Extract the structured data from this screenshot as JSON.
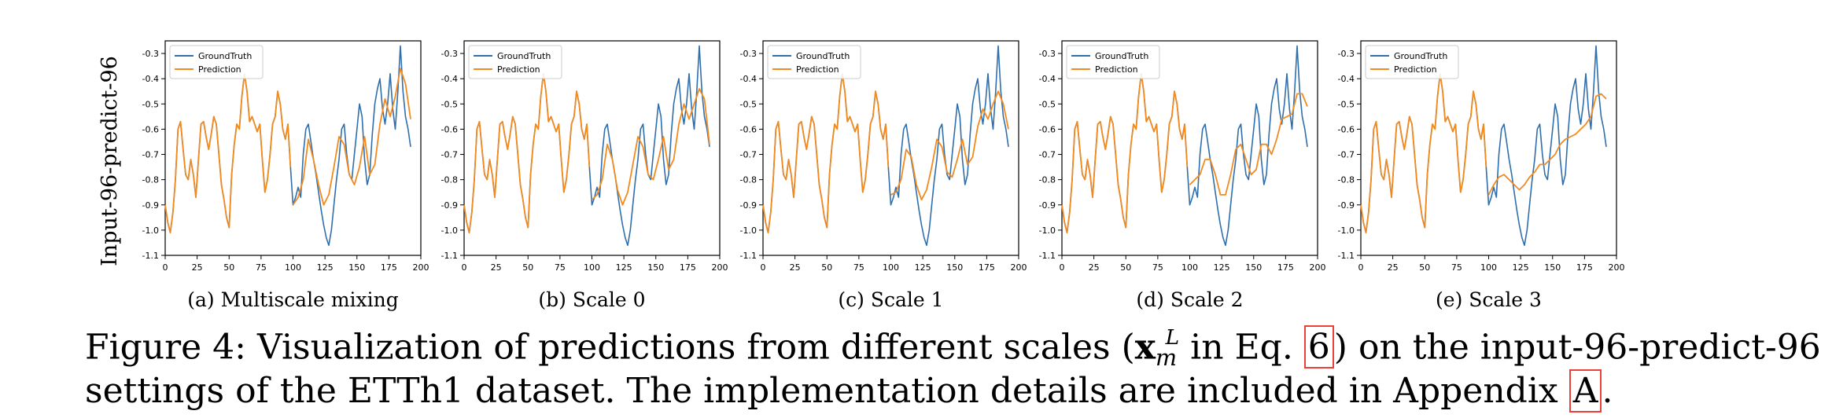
{
  "row_label": "Input-96-predict-96",
  "colors": {
    "ground_truth": "#2f6fad",
    "prediction": "#f28a1f",
    "ref_box": "#e8413a"
  },
  "caption": {
    "part1": "Figure 4: Visualization of predictions from different scales (",
    "symbol": "x",
    "symbol_sub": "m",
    "symbol_sup": "L",
    "part2": " in Eq. ",
    "eq_ref": "6",
    "part3": ") on the input-96-predict-96",
    "line2_text": "settings of the ETTh1 dataset. The implementation details are included in Appendix ",
    "appendix_ref": "A",
    "line2_end": "."
  },
  "chart_data": [
    {
      "type": "line",
      "id": "a",
      "subcaption": "(a) Multiscale mixing",
      "xlim": [
        0,
        200
      ],
      "ylim": [
        -1.1,
        -0.25
      ],
      "xticks": [
        0,
        25,
        50,
        75,
        100,
        125,
        150,
        175,
        200
      ],
      "yticks": [
        -0.3,
        -0.4,
        -0.5,
        -0.6,
        -0.7,
        -0.8,
        -0.9,
        -1.0,
        -1.1
      ],
      "legend": "top-left",
      "series": [
        {
          "name": "GroundTruth",
          "color": "#2f6fad"
        },
        {
          "name": "Prediction",
          "color": "#f28a1f"
        }
      ]
    },
    {
      "type": "line",
      "id": "b",
      "subcaption": "(b) Scale 0",
      "xlim": [
        0,
        200
      ],
      "ylim": [
        -1.1,
        -0.25
      ],
      "xticks": [
        0,
        25,
        50,
        75,
        100,
        125,
        150,
        175,
        200
      ],
      "yticks": [
        -0.3,
        -0.4,
        -0.5,
        -0.6,
        -0.7,
        -0.8,
        -0.9,
        -1.0,
        -1.1
      ],
      "legend": "top-left",
      "series": [
        {
          "name": "GroundTruth",
          "color": "#2f6fad"
        },
        {
          "name": "Prediction",
          "color": "#f28a1f"
        }
      ]
    },
    {
      "type": "line",
      "id": "c",
      "subcaption": "(c) Scale 1",
      "xlim": [
        0,
        200
      ],
      "ylim": [
        -1.1,
        -0.25
      ],
      "xticks": [
        0,
        25,
        50,
        75,
        100,
        125,
        150,
        175,
        200
      ],
      "yticks": [
        -0.3,
        -0.4,
        -0.5,
        -0.6,
        -0.7,
        -0.8,
        -0.9,
        -1.0,
        -1.1
      ],
      "legend": "top-left",
      "series": [
        {
          "name": "GroundTruth",
          "color": "#2f6fad"
        },
        {
          "name": "Prediction",
          "color": "#f28a1f"
        }
      ]
    },
    {
      "type": "line",
      "id": "d",
      "subcaption": "(d) Scale 2",
      "xlim": [
        0,
        200
      ],
      "ylim": [
        -1.1,
        -0.25
      ],
      "xticks": [
        0,
        25,
        50,
        75,
        100,
        125,
        150,
        175,
        200
      ],
      "yticks": [
        -0.3,
        -0.4,
        -0.5,
        -0.6,
        -0.7,
        -0.8,
        -0.9,
        -1.0,
        -1.1
      ],
      "legend": "top-left",
      "series": [
        {
          "name": "GroundTruth",
          "color": "#2f6fad"
        },
        {
          "name": "Prediction",
          "color": "#f28a1f"
        }
      ]
    },
    {
      "type": "line",
      "id": "e",
      "subcaption": "(e) Scale 3",
      "xlim": [
        0,
        200
      ],
      "ylim": [
        -1.1,
        -0.25
      ],
      "xticks": [
        0,
        25,
        50,
        75,
        100,
        125,
        150,
        175,
        200
      ],
      "yticks": [
        -0.3,
        -0.4,
        -0.5,
        -0.6,
        -0.7,
        -0.8,
        -0.9,
        -1.0,
        -1.1
      ],
      "legend": "top-left",
      "series": [
        {
          "name": "GroundTruth",
          "color": "#2f6fad"
        },
        {
          "name": "Prediction",
          "color": "#f28a1f"
        }
      ]
    }
  ],
  "series_data": {
    "x_gt": [
      0,
      2,
      4,
      6,
      8,
      10,
      12,
      14,
      16,
      18,
      20,
      22,
      24,
      26,
      28,
      30,
      32,
      34,
      36,
      38,
      40,
      42,
      44,
      46,
      48,
      50,
      52,
      54,
      56,
      58,
      60,
      62,
      64,
      66,
      68,
      70,
      72,
      74,
      76,
      78,
      80,
      82,
      84,
      86,
      88,
      90,
      92,
      94,
      96,
      98,
      100,
      102,
      104,
      106,
      108,
      110,
      112,
      114,
      116,
      118,
      120,
      122,
      124,
      126,
      128,
      130,
      132,
      134,
      136,
      138,
      140,
      142,
      144,
      146,
      148,
      150,
      152,
      154,
      156,
      158,
      160,
      162,
      164,
      166,
      168,
      170,
      172,
      174,
      176,
      178,
      180,
      182,
      184,
      186,
      188,
      190,
      192
    ],
    "y_gt": [
      -0.9,
      -0.97,
      -1.01,
      -0.93,
      -0.8,
      -0.6,
      -0.57,
      -0.68,
      -0.78,
      -0.8,
      -0.72,
      -0.78,
      -0.87,
      -0.72,
      -0.58,
      -0.57,
      -0.63,
      -0.68,
      -0.62,
      -0.55,
      -0.58,
      -0.7,
      -0.82,
      -0.88,
      -0.95,
      -0.99,
      -0.78,
      -0.66,
      -0.58,
      -0.6,
      -0.47,
      -0.38,
      -0.45,
      -0.57,
      -0.55,
      -0.58,
      -0.61,
      -0.58,
      -0.72,
      -0.85,
      -0.8,
      -0.7,
      -0.58,
      -0.55,
      -0.45,
      -0.5,
      -0.6,
      -0.64,
      -0.58,
      -0.75,
      -0.9,
      -0.87,
      -0.83,
      -0.87,
      -0.7,
      -0.6,
      -0.58,
      -0.65,
      -0.72,
      -0.78,
      -0.85,
      -0.92,
      -0.98,
      -1.03,
      -1.06,
      -1.0,
      -0.9,
      -0.8,
      -0.72,
      -0.6,
      -0.58,
      -0.7,
      -0.78,
      -0.8,
      -0.7,
      -0.6,
      -0.5,
      -0.55,
      -0.72,
      -0.82,
      -0.78,
      -0.62,
      -0.5,
      -0.44,
      -0.4,
      -0.52,
      -0.58,
      -0.5,
      -0.38,
      -0.52,
      -0.6,
      -0.45,
      -0.27,
      -0.45,
      -0.55,
      -0.6,
      -0.67
    ],
    "x_pred": [
      0,
      2,
      4,
      6,
      8,
      10,
      12,
      14,
      16,
      18,
      20,
      22,
      24,
      26,
      28,
      30,
      32,
      34,
      36,
      38,
      40,
      42,
      44,
      46,
      48,
      50,
      52,
      54,
      56,
      58,
      60,
      62,
      64,
      66,
      68,
      70,
      72,
      74,
      76,
      78,
      80,
      82,
      84,
      86,
      88,
      90,
      92,
      94,
      96,
      98
    ],
    "y_pred": [
      -0.9,
      -0.97,
      -1.01,
      -0.93,
      -0.8,
      -0.6,
      -0.57,
      -0.68,
      -0.78,
      -0.8,
      -0.72,
      -0.78,
      -0.87,
      -0.72,
      -0.58,
      -0.57,
      -0.63,
      -0.68,
      -0.62,
      -0.55,
      -0.58,
      -0.7,
      -0.82,
      -0.88,
      -0.95,
      -0.99,
      -0.78,
      -0.66,
      -0.58,
      -0.6,
      -0.47,
      -0.38,
      -0.45,
      -0.57,
      -0.55,
      -0.58,
      -0.61,
      -0.58,
      -0.72,
      -0.85,
      -0.8,
      -0.7,
      -0.58,
      -0.55,
      -0.45,
      -0.5,
      -0.6,
      -0.64,
      -0.58,
      -0.75
    ],
    "x_fut": [
      100,
      104,
      108,
      112,
      116,
      120,
      124,
      128,
      132,
      136,
      140,
      144,
      148,
      152,
      156,
      160,
      164,
      168,
      172,
      176,
      180,
      184,
      188,
      192
    ],
    "y_fut": {
      "a": [
        -0.9,
        -0.87,
        -0.8,
        -0.64,
        -0.72,
        -0.82,
        -0.9,
        -0.86,
        -0.75,
        -0.63,
        -0.66,
        -0.78,
        -0.82,
        -0.75,
        -0.63,
        -0.78,
        -0.74,
        -0.58,
        -0.48,
        -0.55,
        -0.47,
        -0.36,
        -0.42,
        -0.56
      ],
      "b": [
        -0.88,
        -0.86,
        -0.8,
        -0.66,
        -0.72,
        -0.84,
        -0.9,
        -0.85,
        -0.74,
        -0.63,
        -0.67,
        -0.78,
        -0.8,
        -0.72,
        -0.63,
        -0.76,
        -0.72,
        -0.58,
        -0.5,
        -0.56,
        -0.5,
        -0.44,
        -0.48,
        -0.66
      ],
      "c": [
        -0.86,
        -0.85,
        -0.8,
        -0.68,
        -0.71,
        -0.82,
        -0.88,
        -0.84,
        -0.75,
        -0.64,
        -0.67,
        -0.77,
        -0.79,
        -0.72,
        -0.64,
        -0.74,
        -0.71,
        -0.59,
        -0.52,
        -0.56,
        -0.5,
        -0.45,
        -0.5,
        -0.6
      ],
      "d": [
        -0.82,
        -0.8,
        -0.78,
        -0.72,
        -0.72,
        -0.78,
        -0.86,
        -0.86,
        -0.78,
        -0.68,
        -0.66,
        -0.72,
        -0.78,
        -0.76,
        -0.66,
        -0.66,
        -0.7,
        -0.64,
        -0.56,
        -0.55,
        -0.54,
        -0.46,
        -0.46,
        -0.51
      ],
      "e": [
        -0.86,
        -0.82,
        -0.79,
        -0.78,
        -0.8,
        -0.82,
        -0.84,
        -0.82,
        -0.79,
        -0.77,
        -0.74,
        -0.74,
        -0.72,
        -0.7,
        -0.66,
        -0.64,
        -0.63,
        -0.62,
        -0.6,
        -0.58,
        -0.55,
        -0.47,
        -0.46,
        -0.48
      ]
    }
  }
}
